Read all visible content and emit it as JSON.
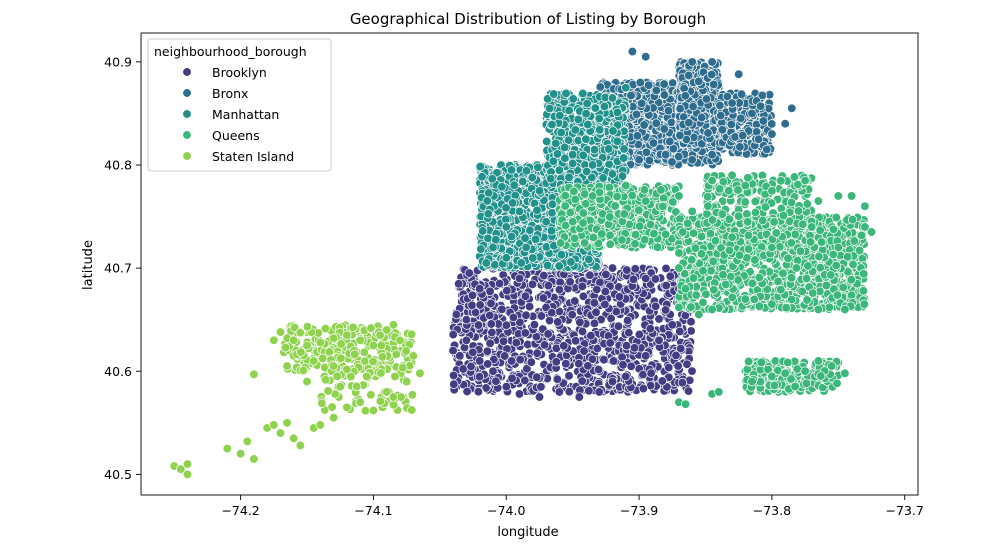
{
  "chart_data": {
    "type": "scatter",
    "title": "Geographical Distribution of Listing by Borough",
    "xlabel": "longitude",
    "ylabel": "latitude",
    "xlim": [
      -74.275,
      -73.69
    ],
    "ylim": [
      40.48,
      40.928
    ],
    "xticks": [
      -74.2,
      -74.1,
      -74.0,
      -73.9,
      -73.8,
      -73.7
    ],
    "xtick_labels": [
      "−74.2",
      "−74.1",
      "−74.0",
      "−73.9",
      "−73.8",
      "−73.7"
    ],
    "yticks": [
      40.5,
      40.6,
      40.7,
      40.8,
      40.9
    ],
    "ytick_labels": [
      "40.5",
      "40.6",
      "40.7",
      "40.8",
      "40.9"
    ],
    "grid": false,
    "legend": {
      "title": "neighbourhood_borough",
      "placement": "top-left"
    },
    "series": [
      {
        "name": "Brooklyn",
        "color": "#433d83",
        "regions": [
          {
            "x_range": [
              -74.04,
              -73.86
            ],
            "y_range": [
              40.58,
              40.7
            ],
            "density": "very high"
          },
          {
            "x_range": [
              -73.97,
              -73.93
            ],
            "y_range": [
              40.7,
              40.735
            ],
            "density": "high"
          }
        ],
        "points": [
          [
            -74.035,
            40.615
          ],
          [
            -74.03,
            40.63
          ],
          [
            -74.02,
            40.61
          ],
          [
            -74.01,
            40.6
          ],
          [
            -74.0,
            40.585
          ],
          [
            -73.99,
            40.578
          ],
          [
            -73.975,
            40.575
          ],
          [
            -73.96,
            40.58
          ],
          [
            -73.945,
            40.575
          ],
          [
            -73.93,
            40.58
          ],
          [
            -73.92,
            40.59
          ],
          [
            -73.91,
            40.595
          ],
          [
            -73.895,
            40.615
          ],
          [
            -73.885,
            40.63
          ],
          [
            -73.875,
            40.645
          ],
          [
            -73.865,
            40.665
          ],
          [
            -73.87,
            40.68
          ],
          [
            -73.895,
            40.69
          ],
          [
            -73.92,
            40.7
          ],
          [
            -73.935,
            40.71
          ],
          [
            -73.95,
            40.72
          ],
          [
            -73.96,
            40.735
          ],
          [
            -73.975,
            40.705
          ],
          [
            -73.99,
            40.69
          ],
          [
            -74.005,
            40.685
          ],
          [
            -74.02,
            40.68
          ],
          [
            -74.03,
            40.65
          ],
          [
            -74.04,
            40.62
          ]
        ]
      },
      {
        "name": "Bronx",
        "color": "#2e6d8e",
        "regions": [
          {
            "x_range": [
              -73.93,
              -73.84
            ],
            "y_range": [
              40.8,
              40.88
            ],
            "density": "very high"
          },
          {
            "x_range": [
              -73.87,
              -73.84
            ],
            "y_range": [
              40.82,
              40.9
            ],
            "density": "high"
          },
          {
            "x_range": [
              -73.84,
              -73.8
            ],
            "y_range": [
              40.81,
              40.87
            ],
            "density": "medium"
          }
        ],
        "points": [
          [
            -73.905,
            40.91
          ],
          [
            -73.895,
            40.905
          ],
          [
            -73.86,
            40.9
          ],
          [
            -73.845,
            40.9
          ],
          [
            -73.825,
            40.888
          ],
          [
            -73.83,
            40.86
          ],
          [
            -73.815,
            40.85
          ],
          [
            -73.79,
            40.84
          ],
          [
            -73.785,
            40.855
          ],
          [
            -73.8,
            40.83
          ],
          [
            -73.81,
            40.825
          ],
          [
            -73.845,
            40.81
          ],
          [
            -73.86,
            40.805
          ],
          [
            -73.88,
            40.81
          ],
          [
            -73.9,
            40.805
          ],
          [
            -73.915,
            40.8
          ],
          [
            -73.925,
            40.82
          ],
          [
            -73.93,
            40.845
          ],
          [
            -73.92,
            40.86
          ],
          [
            -73.91,
            40.875
          ]
        ]
      },
      {
        "name": "Manhattan",
        "color": "#21918c",
        "regions": [
          {
            "x_range": [
              -74.02,
              -73.93
            ],
            "y_range": [
              40.7,
              40.8
            ],
            "density": "very high"
          },
          {
            "x_range": [
              -73.97,
              -73.91
            ],
            "y_range": [
              40.78,
              40.87
            ],
            "density": "high"
          }
        ],
        "points": [
          [
            -74.015,
            40.705
          ],
          [
            -74.01,
            40.72
          ],
          [
            -74.0,
            40.74
          ],
          [
            -73.99,
            40.755
          ],
          [
            -73.975,
            40.775
          ],
          [
            -73.96,
            40.795
          ],
          [
            -73.95,
            40.81
          ],
          [
            -73.94,
            40.825
          ],
          [
            -73.93,
            40.845
          ],
          [
            -73.92,
            40.865
          ],
          [
            -73.91,
            40.875
          ],
          [
            -73.935,
            40.8
          ],
          [
            -73.95,
            40.775
          ],
          [
            -73.97,
            40.745
          ],
          [
            -73.985,
            40.72
          ],
          [
            -74.0,
            40.71
          ]
        ]
      },
      {
        "name": "Queens",
        "color": "#3bb77a",
        "regions": [
          {
            "x_range": [
              -73.96,
              -73.87
            ],
            "y_range": [
              40.72,
              40.78
            ],
            "density": "high"
          },
          {
            "x_range": [
              -73.87,
              -73.73
            ],
            "y_range": [
              40.66,
              40.75
            ],
            "density": "very high"
          },
          {
            "x_range": [
              -73.85,
              -73.77
            ],
            "y_range": [
              40.74,
              40.79
            ],
            "density": "medium"
          },
          {
            "x_range": [
              -73.82,
              -73.75
            ],
            "y_range": [
              40.58,
              40.61
            ],
            "density": "medium"
          }
        ],
        "points": [
          [
            -73.95,
            40.745
          ],
          [
            -73.935,
            40.77
          ],
          [
            -73.91,
            40.78
          ],
          [
            -73.895,
            40.765
          ],
          [
            -73.87,
            40.77
          ],
          [
            -73.86,
            40.755
          ],
          [
            -73.845,
            40.785
          ],
          [
            -73.83,
            40.79
          ],
          [
            -73.82,
            40.78
          ],
          [
            -73.8,
            40.775
          ],
          [
            -73.775,
            40.785
          ],
          [
            -73.765,
            40.765
          ],
          [
            -73.75,
            40.77
          ],
          [
            -73.74,
            40.77
          ],
          [
            -73.73,
            40.76
          ],
          [
            -73.725,
            40.735
          ],
          [
            -73.73,
            40.74
          ],
          [
            -73.745,
            40.66
          ],
          [
            -73.765,
            40.66
          ],
          [
            -73.8,
            40.665
          ],
          [
            -73.82,
            40.67
          ],
          [
            -73.845,
            40.66
          ],
          [
            -73.855,
            40.655
          ],
          [
            -73.865,
            40.68
          ],
          [
            -73.87,
            40.7
          ],
          [
            -73.87,
            40.57
          ],
          [
            -73.865,
            40.568
          ],
          [
            -73.845,
            40.578
          ],
          [
            -73.84,
            40.58
          ],
          [
            -73.815,
            40.59
          ],
          [
            -73.8,
            40.595
          ],
          [
            -73.79,
            40.598
          ],
          [
            -73.775,
            40.6
          ],
          [
            -73.765,
            40.61
          ],
          [
            -73.755,
            40.605
          ],
          [
            -73.745,
            40.598
          ],
          [
            -73.75,
            40.72
          ],
          [
            -73.77,
            40.74
          ],
          [
            -73.8,
            40.72
          ],
          [
            -73.83,
            40.73
          ]
        ]
      },
      {
        "name": "Staten Island",
        "color": "#8fd24e",
        "regions": [
          {
            "x_range": [
              -74.17,
              -74.07
            ],
            "y_range": [
              40.6,
              40.645
            ],
            "density": "medium"
          },
          {
            "x_range": [
              -74.14,
              -74.07
            ],
            "y_range": [
              40.56,
              40.62
            ],
            "density": "low"
          }
        ],
        "points": [
          [
            -74.25,
            40.508
          ],
          [
            -74.245,
            40.505
          ],
          [
            -74.24,
            40.5
          ],
          [
            -74.24,
            40.51
          ],
          [
            -74.21,
            40.525
          ],
          [
            -74.2,
            40.52
          ],
          [
            -74.195,
            40.532
          ],
          [
            -74.19,
            40.515
          ],
          [
            -74.18,
            40.545
          ],
          [
            -74.175,
            40.548
          ],
          [
            -74.17,
            40.54
          ],
          [
            -74.165,
            40.55
          ],
          [
            -74.16,
            40.535
          ],
          [
            -74.155,
            40.528
          ],
          [
            -74.145,
            40.545
          ],
          [
            -74.14,
            40.548
          ],
          [
            -74.13,
            40.555
          ],
          [
            -74.12,
            40.565
          ],
          [
            -74.11,
            40.57
          ],
          [
            -74.1,
            40.562
          ],
          [
            -74.09,
            40.58
          ],
          [
            -74.085,
            40.575
          ],
          [
            -74.075,
            40.59
          ],
          [
            -74.065,
            40.598
          ],
          [
            -74.07,
            40.615
          ],
          [
            -74.08,
            40.63
          ],
          [
            -74.085,
            40.645
          ],
          [
            -74.09,
            40.64
          ],
          [
            -74.095,
            40.635
          ],
          [
            -74.1,
            40.625
          ],
          [
            -74.11,
            40.63
          ],
          [
            -74.12,
            40.635
          ],
          [
            -74.13,
            40.632
          ],
          [
            -74.14,
            40.628
          ],
          [
            -74.15,
            40.625
          ],
          [
            -74.16,
            40.63
          ],
          [
            -74.17,
            40.638
          ],
          [
            -74.175,
            40.63
          ],
          [
            -74.165,
            40.605
          ],
          [
            -74.145,
            40.61
          ],
          [
            -74.13,
            40.605
          ],
          [
            -74.19,
            40.597
          ],
          [
            -74.15,
            40.59
          ],
          [
            -74.125,
            40.585
          ],
          [
            -74.105,
            40.595
          ]
        ]
      }
    ]
  }
}
